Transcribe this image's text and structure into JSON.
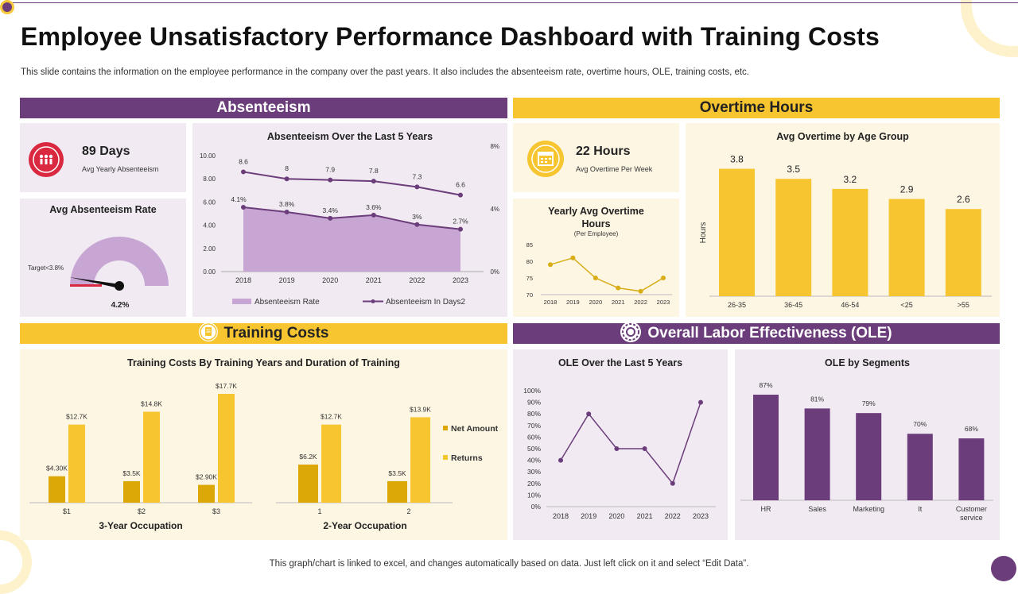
{
  "title": "Employee Unsatisfactory Performance Dashboard with Training Costs",
  "subtitle": "This slide contains the information on the employee performance in the company over the past years. It also includes the absenteeism rate, overtime hours, OLE, training costs, etc.",
  "footer": "This graph/chart is linked to excel, and changes automatically based on data. Just left click on it and select “Edit Data”.",
  "colors": {
    "purple": "#6b3d7a",
    "yellow": "#f7c530",
    "lightPurple": "#c8a6d4",
    "gold": "#dba808"
  },
  "absenteeism": {
    "header": "Absenteeism",
    "kpi_value": "89 Days",
    "kpi_label": "Avg Yearly Absenteeism",
    "gauge_title": "Avg Absenteeism Rate",
    "gauge_target": "Target<3.8%",
    "gauge_value": "4.2%"
  },
  "overtime": {
    "header": "Overtime Hours",
    "kpi_value": "22 Hours",
    "kpi_label": "Avg Overtime Per Week"
  },
  "training": {
    "header": "Training Costs"
  },
  "ole": {
    "header": "Overall Labor Effectiveness (OLE)"
  },
  "chart_data": [
    {
      "id": "absenteeism_5yr",
      "type": "area",
      "title": "Absenteeism Over the Last 5 Years",
      "x": [
        "2018",
        "2019",
        "2020",
        "2021",
        "2022",
        "2023"
      ],
      "series": [
        {
          "name": "Absenteeism Rate",
          "type": "area",
          "values": [
            4.1,
            3.8,
            3.4,
            3.6,
            3.0,
            2.7
          ],
          "labels": [
            "4.1%",
            "3.8%",
            "3.4%",
            "3.6%",
            "3%",
            "2.7%"
          ]
        },
        {
          "name": "Absenteeism In Days2",
          "type": "line",
          "values": [
            8.6,
            8.0,
            7.9,
            7.8,
            7.3,
            6.6
          ],
          "labels": [
            "8.6",
            "8",
            "7.9",
            "7.8",
            "7.3",
            "6.6"
          ]
        }
      ],
      "y_left_ticks": [
        "10.00",
        "8.00",
        "6.00",
        "4.00",
        "2.00",
        "0.00"
      ],
      "y_left_range": [
        0,
        10
      ],
      "y_right_ticks": [
        "8%",
        "4%",
        "0%"
      ],
      "y_right_range": [
        0,
        8
      ]
    },
    {
      "id": "overtime_age",
      "type": "bar",
      "title": "Avg Overtime by Age Group",
      "ylabel": "Hours",
      "categories": [
        "26-35",
        "36-45",
        "46-54",
        "<25",
        ">55"
      ],
      "values": [
        3.8,
        3.5,
        3.2,
        2.9,
        2.6
      ],
      "labels": [
        "3.8",
        "3.5",
        "3.2",
        "2.9",
        "2.6"
      ],
      "ylim": [
        0,
        4.5
      ]
    },
    {
      "id": "yearly_overtime",
      "type": "line",
      "title": "Yearly Avg Overtime Hours",
      "subtitle": "(Per Employee)",
      "x": [
        "2018",
        "2019",
        "2020",
        "2021",
        "2022",
        "2023"
      ],
      "values": [
        79,
        81,
        75,
        72,
        71,
        75
      ],
      "y_ticks": [
        "85",
        "80",
        "75",
        "70"
      ],
      "ylim": [
        70,
        85
      ]
    },
    {
      "id": "training_costs",
      "type": "bar",
      "title": "Training Costs By Training Years and Duration of Training",
      "legend": [
        "Net Amount",
        "Returns"
      ],
      "groups": [
        {
          "name": "3-Year Occupation",
          "categories": [
            "$1",
            "$2",
            "$3"
          ],
          "net": [
            4.3,
            3.5,
            2.9
          ],
          "net_labels": [
            "$4.30K",
            "$3.5K",
            "$2.90K"
          ],
          "returns": [
            12.7,
            14.8,
            17.7
          ],
          "returns_labels": [
            "$12.7K",
            "$14.8K",
            "$17.7K"
          ]
        },
        {
          "name": "2-Year Occupation",
          "categories": [
            "1",
            "2"
          ],
          "net": [
            6.2,
            3.5
          ],
          "net_labels": [
            "$6.2K",
            "$3.5K"
          ],
          "returns": [
            12.7,
            13.9
          ],
          "returns_labels": [
            "$12.7K",
            "$13.9K"
          ]
        }
      ]
    },
    {
      "id": "ole_5yr",
      "type": "line",
      "title": "OLE Over the Last 5 Years",
      "x": [
        "2018",
        "2019",
        "2020",
        "2021",
        "2022",
        "2023"
      ],
      "values": [
        40,
        80,
        50,
        50,
        20,
        90
      ],
      "y_ticks": [
        "100%",
        "90%",
        "80%",
        "70%",
        "60%",
        "50%",
        "40%",
        "30%",
        "20%",
        "10%",
        "0%"
      ],
      "ylim": [
        0,
        100
      ]
    },
    {
      "id": "ole_segments",
      "type": "bar",
      "title": "OLE by Segments",
      "categories": [
        "HR",
        "Sales",
        "Marketing",
        "It",
        "Customer service"
      ],
      "values": [
        87,
        81,
        79,
        70,
        68
      ],
      "labels": [
        "87%",
        "81%",
        "79%",
        "70%",
        "68%"
      ],
      "ylim": [
        0,
        100
      ]
    }
  ]
}
